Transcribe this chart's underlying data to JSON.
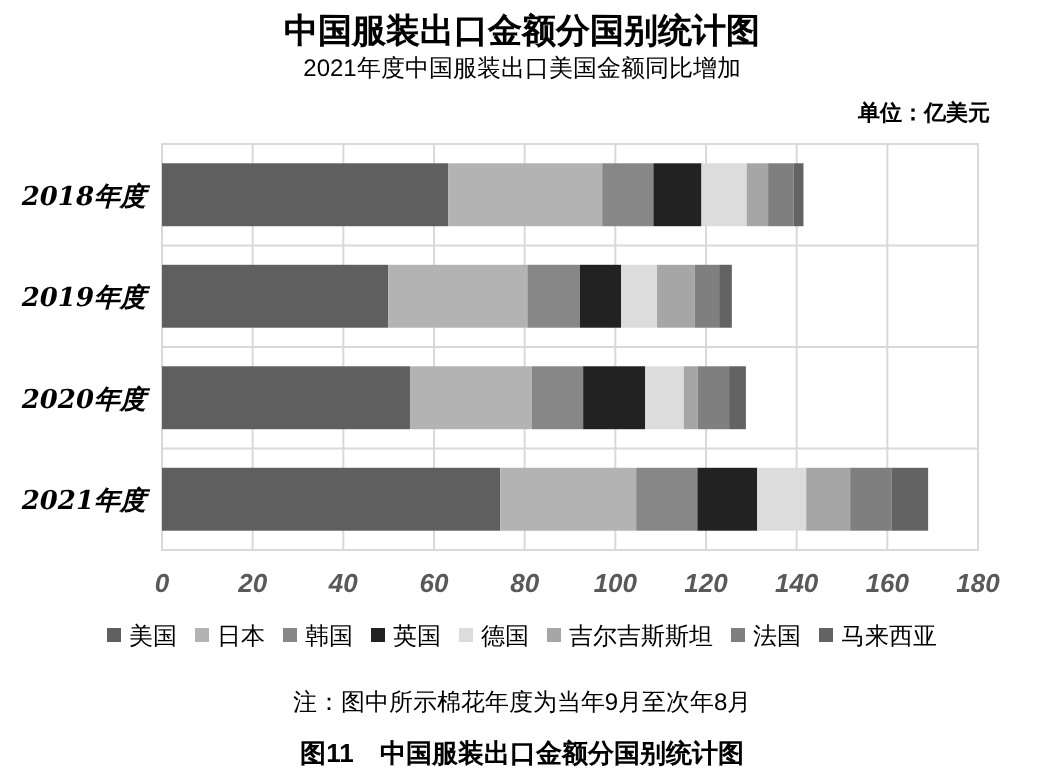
{
  "chart_data": {
    "type": "bar",
    "orientation": "horizontal",
    "stacked": true,
    "title": "中国服装出口金额分国别统计图",
    "subtitle": "2021年度中国服装出口美国金额同比增加",
    "annotations": [
      "单位：亿美元",
      "注：图中所示棉花年度为当年9月至次年8月",
      "图11　中国服装出口金额分国别统计图"
    ],
    "categories": [
      "2018年度",
      "2019年度",
      "2020年度",
      "2021年度"
    ],
    "series": [
      {
        "name": "美国",
        "color": "#5f5f5f",
        "values": [
          63.1,
          49.9,
          54.7,
          74.6
        ]
      },
      {
        "name": "日本",
        "color": "#b3b3b3",
        "values": [
          34.0,
          30.7,
          26.9,
          30.0
        ]
      },
      {
        "name": "韩国",
        "color": "#878787",
        "values": [
          11.3,
          11.6,
          11.3,
          13.5
        ]
      },
      {
        "name": "英国",
        "color": "#222222",
        "values": [
          10.6,
          9.1,
          13.7,
          13.2
        ]
      },
      {
        "name": "德国",
        "color": "#dcdcdc",
        "values": [
          10.0,
          7.9,
          8.5,
          10.8
        ]
      },
      {
        "name": "吉尔吉斯斯坦",
        "color": "#a6a6a6",
        "values": [
          4.7,
          8.3,
          3.1,
          9.7
        ]
      },
      {
        "name": "法国",
        "color": "#7f7f7f",
        "values": [
          5.6,
          5.4,
          6.9,
          9.1
        ]
      },
      {
        "name": "马来西亚",
        "color": "#636363",
        "values": [
          2.2,
          2.8,
          3.7,
          8.1
        ]
      }
    ],
    "xlim": [
      0,
      180
    ],
    "xticks": [
      0,
      20,
      40,
      60,
      80,
      100,
      120,
      140,
      160,
      180
    ],
    "grid": true,
    "legend": "bottom"
  }
}
